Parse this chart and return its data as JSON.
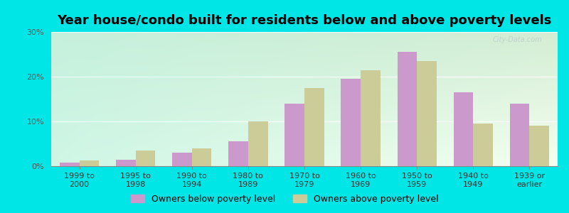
{
  "title": "Year house/condo built for residents below and above poverty levels",
  "categories": [
    "1999 to\n2000",
    "1995 to\n1998",
    "1990 to\n1994",
    "1980 to\n1989",
    "1970 to\n1979",
    "1960 to\n1969",
    "1950 to\n1959",
    "1940 to\n1949",
    "1939 or\nearlier"
  ],
  "below_poverty": [
    0.8,
    1.5,
    3.0,
    5.5,
    14.0,
    19.5,
    25.5,
    16.5,
    14.0
  ],
  "above_poverty": [
    1.2,
    3.5,
    4.0,
    10.0,
    17.5,
    21.5,
    23.5,
    9.5,
    9.0
  ],
  "below_color": "#cc99cc",
  "above_color": "#cccc99",
  "background_color": "#00e5e5",
  "ylim": [
    0,
    30
  ],
  "yticks": [
    0,
    10,
    20,
    30
  ],
  "ytick_labels": [
    "0%",
    "10%",
    "20%",
    "30%"
  ],
  "bar_width": 0.35,
  "legend_below_label": "Owners below poverty level",
  "legend_above_label": "Owners above poverty level",
  "title_fontsize": 13,
  "tick_fontsize": 8,
  "legend_fontsize": 9,
  "watermark": "City-Data.com"
}
